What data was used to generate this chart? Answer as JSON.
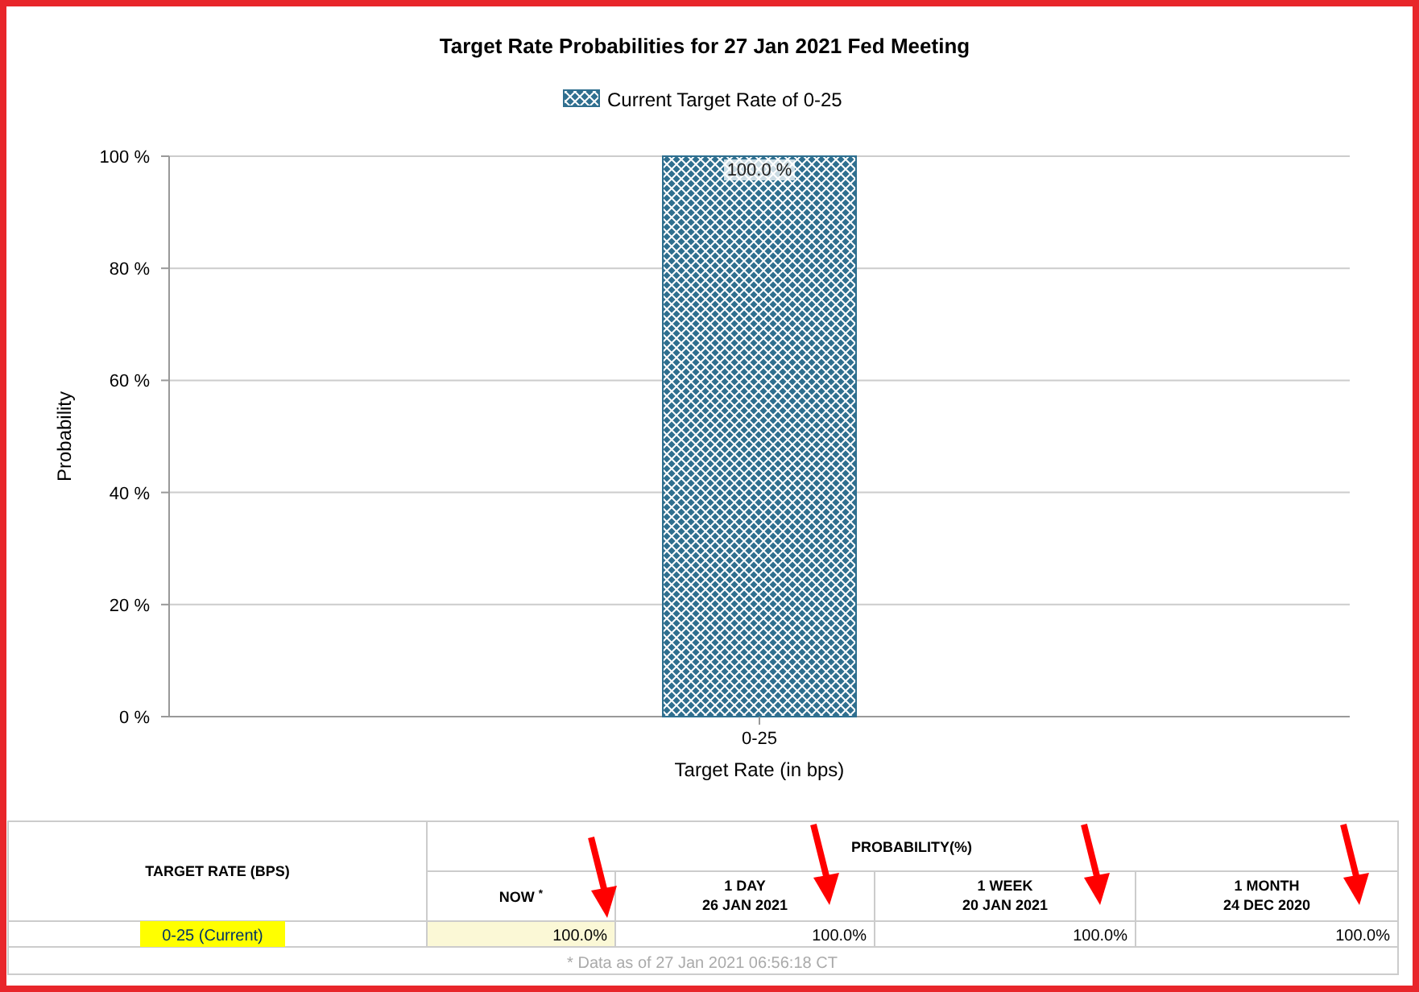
{
  "chart_data": {
    "type": "bar",
    "title": "Target Rate Probabilities for 27 Jan 2021 Fed Meeting",
    "xlabel": "Target Rate (in bps)",
    "ylabel": "Probability",
    "categories": [
      "0-25"
    ],
    "series": [
      {
        "name": "Current Target Rate of 0-25",
        "color": "#2f6f8f",
        "values": [
          100
        ],
        "value_labels": [
          "100.0 %"
        ]
      }
    ],
    "ylim": [
      0,
      100
    ],
    "yticks": [
      {
        "value": 0,
        "label": "0 %"
      },
      {
        "value": 20,
        "label": "20 %"
      },
      {
        "value": 40,
        "label": "40 %"
      },
      {
        "value": 60,
        "label": "60 %"
      },
      {
        "value": 80,
        "label": "80 %"
      },
      {
        "value": 100,
        "label": "100 %"
      }
    ],
    "grid": "y",
    "legend": "top",
    "annotations": [
      "TARGET RATE (BPS)",
      "PROBABILITY(%)",
      "NOW $^{*}$",
      "1 DAY",
      "26 JAN 2021",
      "1 WEEK",
      "20 JAN 2021",
      "1 MONTH",
      "24 DEC 2020",
      "0-25 (Current)",
      "100.0%",
      "100.0%",
      "100.0%",
      "100.0%",
      "* Data as of 27 Jan 2021 06:56:18 CT"
    ]
  }
}
